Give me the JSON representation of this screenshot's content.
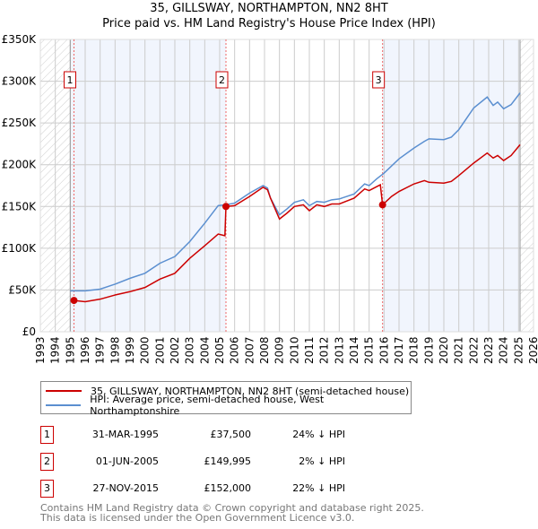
{
  "chart_data": {
    "type": "line",
    "title": "35, GILLSWAY, NORTHAMPTON, NN2 8HT",
    "subtitle": "Price paid vs. HM Land Registry's House Price Index (HPI)",
    "xlim": [
      1993,
      2026
    ],
    "ylim": [
      0,
      350000
    ],
    "x_ticks": [
      "1993",
      "1994",
      "1995",
      "1996",
      "1997",
      "1998",
      "1999",
      "2000",
      "2001",
      "2002",
      "2003",
      "2004",
      "2005",
      "2006",
      "2007",
      "2008",
      "2009",
      "2010",
      "2011",
      "2012",
      "2013",
      "2014",
      "2015",
      "2016",
      "2017",
      "2018",
      "2019",
      "2020",
      "2021",
      "2022",
      "2023",
      "2024",
      "2025",
      "2026"
    ],
    "y_ticks": [
      {
        "v": 0,
        "label": "£0"
      },
      {
        "v": 50000,
        "label": "£50K"
      },
      {
        "v": 100000,
        "label": "£100K"
      },
      {
        "v": 150000,
        "label": "£150K"
      },
      {
        "v": 200000,
        "label": "£200K"
      },
      {
        "v": 250000,
        "label": "£250K"
      },
      {
        "v": 300000,
        "label": "£300K"
      },
      {
        "v": 350000,
        "label": "£350K"
      }
    ],
    "grid": true,
    "series": [
      {
        "name": "35, GILLSWAY, NORTHAMPTON, NN2 8HT (semi-detached house)",
        "color": "#cc0000",
        "points": [
          [
            1995.25,
            37500
          ],
          [
            1996,
            36000
          ],
          [
            1997,
            39000
          ],
          [
            1998,
            44000
          ],
          [
            1999,
            48000
          ],
          [
            2000,
            53000
          ],
          [
            2001,
            63000
          ],
          [
            2002,
            70000
          ],
          [
            2003,
            88000
          ],
          [
            2004,
            103000
          ],
          [
            2004.9,
            117000
          ],
          [
            2005.35,
            115000
          ],
          [
            2005.42,
            149995
          ],
          [
            2006,
            151000
          ],
          [
            2007,
            162000
          ],
          [
            2007.9,
            173000
          ],
          [
            2008.2,
            170000
          ],
          [
            2008.4,
            160000
          ],
          [
            2009,
            135000
          ],
          [
            2009.5,
            142000
          ],
          [
            2010,
            150000
          ],
          [
            2010.6,
            152000
          ],
          [
            2011,
            145000
          ],
          [
            2011.5,
            152000
          ],
          [
            2012,
            150000
          ],
          [
            2012.5,
            153000
          ],
          [
            2013,
            153000
          ],
          [
            2014,
            160000
          ],
          [
            2014.7,
            171000
          ],
          [
            2015,
            169000
          ],
          [
            2015.75,
            176000
          ],
          [
            2015.9,
            152000
          ],
          [
            2016.5,
            162000
          ],
          [
            2017,
            168000
          ],
          [
            2018,
            177000
          ],
          [
            2018.7,
            181000
          ],
          [
            2019,
            179000
          ],
          [
            2020,
            178000
          ],
          [
            2020.5,
            180000
          ],
          [
            2021,
            187000
          ],
          [
            2022,
            202000
          ],
          [
            2022.9,
            214000
          ],
          [
            2023.3,
            208000
          ],
          [
            2023.6,
            211000
          ],
          [
            2024,
            205000
          ],
          [
            2024.5,
            211000
          ],
          [
            2025.1,
            224000
          ]
        ]
      },
      {
        "name": "HPI: Average price, semi-detached house, West Northamptonshire",
        "color": "#5b8fd0",
        "points": [
          [
            1995,
            49000
          ],
          [
            1996,
            49000
          ],
          [
            1997,
            51000
          ],
          [
            1998,
            57000
          ],
          [
            1999,
            64000
          ],
          [
            2000,
            70000
          ],
          [
            2001,
            82000
          ],
          [
            2002,
            90000
          ],
          [
            2003,
            108000
          ],
          [
            2004,
            130000
          ],
          [
            2004.9,
            151000
          ],
          [
            2005.4,
            152000
          ],
          [
            2006,
            154000
          ],
          [
            2007,
            166000
          ],
          [
            2007.9,
            175000
          ],
          [
            2008.2,
            172000
          ],
          [
            2008.4,
            160000
          ],
          [
            2009,
            140000
          ],
          [
            2009.5,
            147000
          ],
          [
            2010,
            155000
          ],
          [
            2010.6,
            158000
          ],
          [
            2011,
            151000
          ],
          [
            2011.5,
            156000
          ],
          [
            2012,
            155000
          ],
          [
            2012.5,
            158000
          ],
          [
            2013,
            159000
          ],
          [
            2014,
            165000
          ],
          [
            2014.7,
            177000
          ],
          [
            2015,
            175000
          ],
          [
            2015.5,
            183000
          ],
          [
            2016,
            190000
          ],
          [
            2017,
            207000
          ],
          [
            2018,
            220000
          ],
          [
            2018.7,
            228000
          ],
          [
            2019,
            231000
          ],
          [
            2020,
            230000
          ],
          [
            2020.5,
            233000
          ],
          [
            2021,
            242000
          ],
          [
            2022,
            268000
          ],
          [
            2022.9,
            281000
          ],
          [
            2023.3,
            271000
          ],
          [
            2023.6,
            275000
          ],
          [
            2024,
            267000
          ],
          [
            2024.5,
            272000
          ],
          [
            2025.1,
            286000
          ]
        ]
      }
    ],
    "sales": [
      {
        "label": "1",
        "x": 1995.25,
        "y": 37500,
        "date": "31-MAR-1995",
        "price": "£37,500",
        "hpi": "24% ↓ HPI"
      },
      {
        "label": "2",
        "x": 2005.42,
        "y": 149995,
        "date": "01-JUN-2005",
        "price": "£149,995",
        "hpi": "2% ↓ HPI"
      },
      {
        "label": "3",
        "x": 2015.9,
        "y": 152000,
        "date": "27-NOV-2015",
        "price": "£152,000",
        "hpi": "22% ↓ HPI"
      }
    ],
    "shaded_ranges": [
      [
        1995,
        2005.42
      ],
      [
        2015.9,
        2025.1
      ]
    ],
    "hatched_ranges": [
      [
        1993,
        1995
      ],
      [
        2025.1,
        2026
      ]
    ],
    "legend_position": "below"
  },
  "footer": {
    "line1": "Contains HM Land Registry data © Crown copyright and database right 2025.",
    "line2": "This data is licensed under the Open Government Licence v3.0."
  }
}
